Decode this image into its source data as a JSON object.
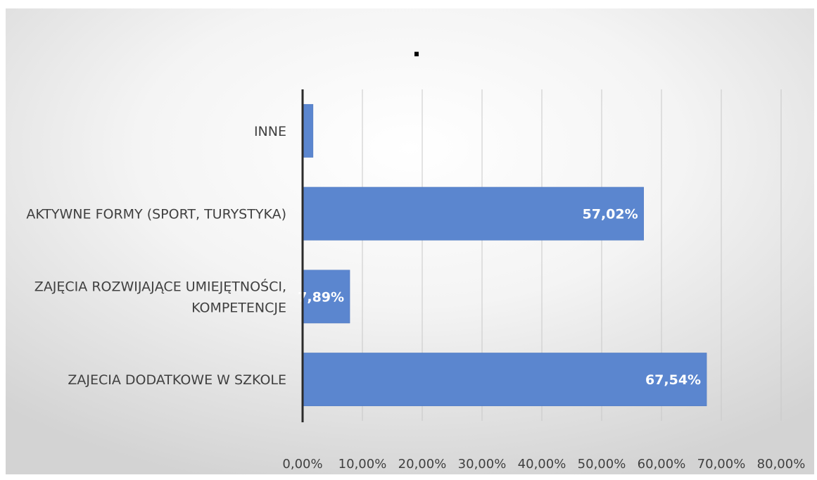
{
  "chart_data": {
    "type": "bar",
    "orientation": "horizontal",
    "title": ".",
    "categories": [
      "INNE",
      "AKTYWNE FORMY (SPORT, TURYSTYKA)",
      "ZAJĘCIA ROZWIJAJĄCE UMIEJĘTNOŚCI, KOMPETENCJE",
      "ZAJECIA DODATKOWE W SZKOLE"
    ],
    "category_label_lines": [
      [
        "INNE"
      ],
      [
        "AKTYWNE FORMY (SPORT, TURYSTYKA)"
      ],
      [
        "ZAJĘCIA ROZWIJAJĄCE UMIEJĘTNOŚCI,",
        "KOMPETENCJE"
      ],
      [
        "ZAJECIA DODATKOWE W SZKOLE"
      ]
    ],
    "values": [
      1.75,
      57.02,
      7.89,
      67.54
    ],
    "data_labels": [
      "",
      "57,02%",
      "7,89%",
      "67,54%"
    ],
    "xlim": [
      0,
      80
    ],
    "x_ticks": [
      0,
      10,
      20,
      30,
      40,
      50,
      60,
      70,
      80
    ],
    "x_tick_labels": [
      "0,00%",
      "10,00%",
      "20,00%",
      "30,00%",
      "40,00%",
      "50,00%",
      "60,00%",
      "70,00%",
      "80,00%"
    ],
    "grid": true,
    "legend": "none",
    "colors": {
      "bar": "#5b86cf",
      "bar_edge": "#4a74bd",
      "grid": "#c8c8c8",
      "axis": "#2b2b2b",
      "text": "#404040",
      "data_label": "#ffffff",
      "background_center": "#ffffff",
      "background_edge": "#d3d3d3"
    }
  }
}
